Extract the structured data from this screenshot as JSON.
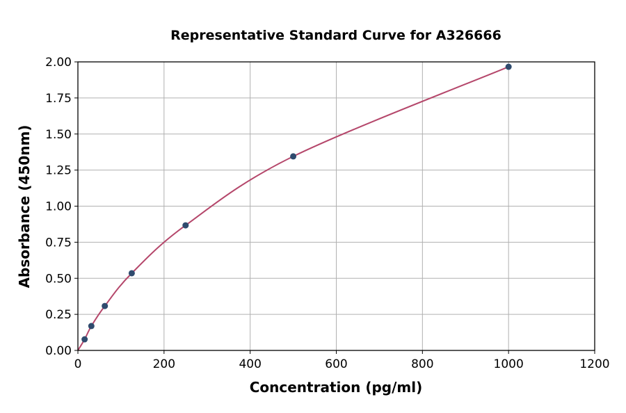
{
  "chart_data": {
    "type": "scatter",
    "title": "Representative Standard Curve for A326666",
    "xlabel": "Concentration (pg/ml)",
    "ylabel": "Absorbance (450nm)",
    "xlim": [
      0,
      1200
    ],
    "ylim": [
      0,
      2.0
    ],
    "xticks": [
      "0",
      "200",
      "400",
      "600",
      "800",
      "1000",
      "1200"
    ],
    "yticks": [
      "0.00",
      "0.25",
      "0.50",
      "0.75",
      "1.00",
      "1.25",
      "1.50",
      "1.75",
      "2.00"
    ],
    "grid": true,
    "points": {
      "x": [
        15.6,
        31.25,
        62.5,
        125,
        250,
        500,
        1000
      ],
      "y": [
        0.077,
        0.169,
        0.308,
        0.535,
        0.867,
        1.345,
        1.966
      ]
    },
    "fit_curve": true,
    "colors": {
      "points": "#2f4b6e",
      "curve": "#b5476b"
    }
  }
}
